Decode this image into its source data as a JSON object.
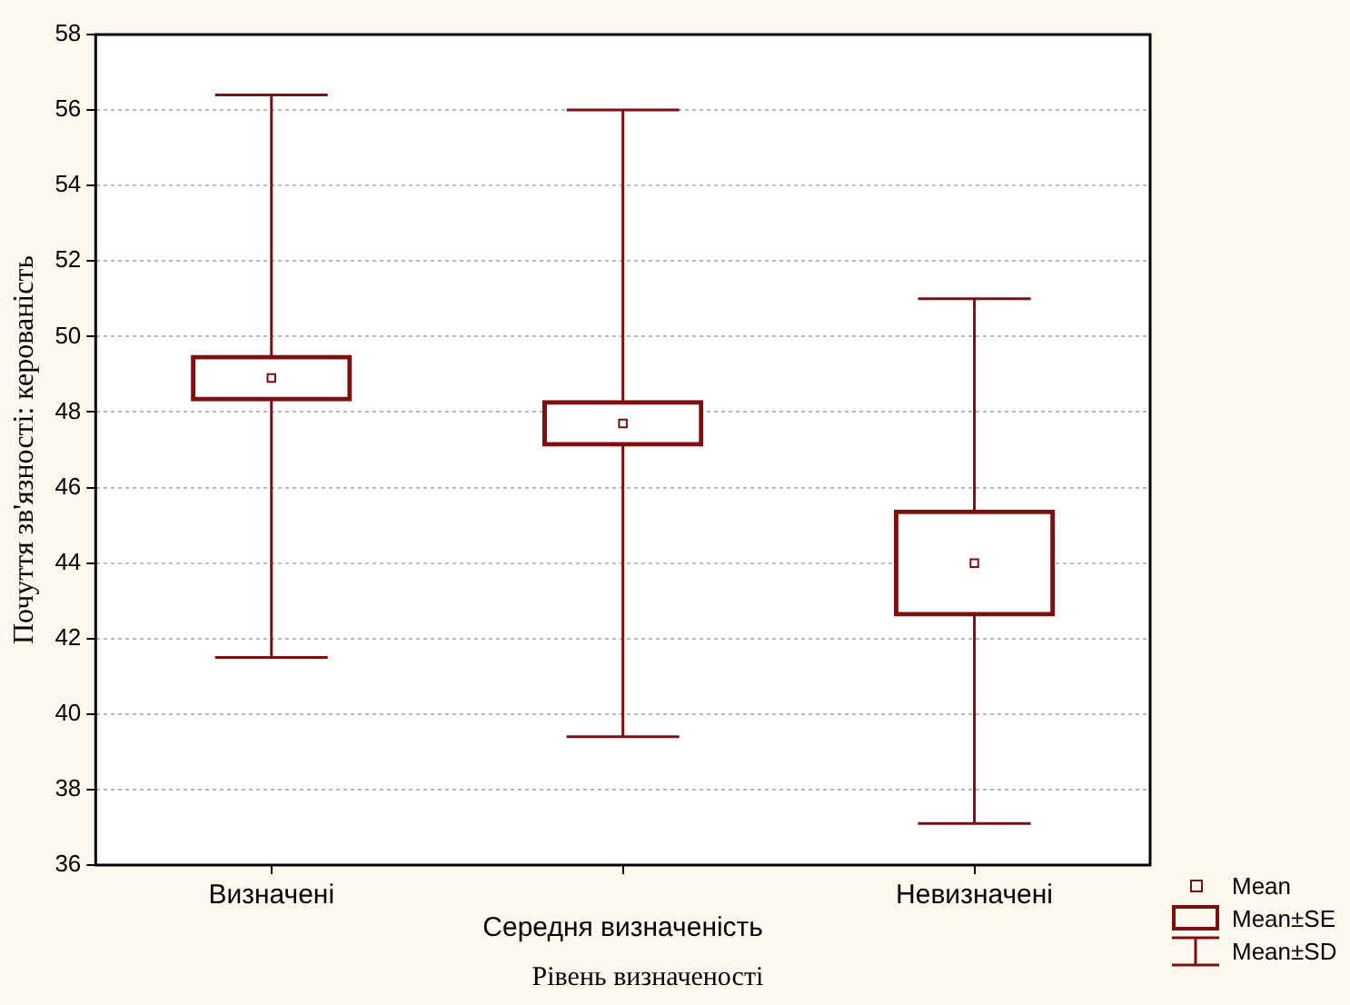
{
  "chart_data": {
    "type": "box",
    "xlabel": "Рівень визначеності",
    "ylabel": "Почуття зв'язності: керованість",
    "categories": [
      "Визначені",
      "Середня визначеність",
      "Невизначені"
    ],
    "series": [
      {
        "color": "#7f0f0f",
        "boxes": [
          {
            "low": 41.5,
            "q1": 48.3,
            "median": 48.9,
            "q3": 49.5,
            "high": 56.4
          },
          {
            "low": 39.4,
            "q1": 47.1,
            "median": 47.7,
            "q3": 48.3,
            "high": 56.0
          },
          {
            "low": 37.1,
            "q1": 42.6,
            "median": 44.0,
            "q3": 45.4,
            "high": 51.0
          }
        ]
      }
    ],
    "ylim": [
      36,
      58
    ],
    "yticks": [
      36,
      38,
      40,
      42,
      44,
      46,
      48,
      50,
      52,
      54,
      56,
      58
    ],
    "grid": "y",
    "annotations": [
      "Mean",
      "Mean±SE",
      "Mean±SD"
    ]
  }
}
